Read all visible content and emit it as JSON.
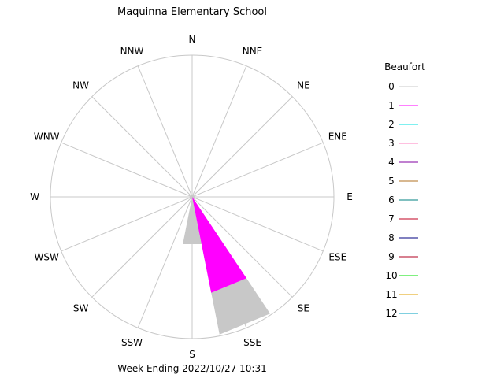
{
  "chart_data": {
    "type": "wind-rose",
    "title": "Maquinna Elementary School",
    "footer": "Week Ending 2022/10/27 10:31",
    "directions": [
      "N",
      "NNE",
      "NE",
      "ENE",
      "E",
      "ESE",
      "SE",
      "SSE",
      "S",
      "SSW",
      "SW",
      "WSW",
      "W",
      "WNW",
      "NW",
      "NNW"
    ],
    "max_radius_units": 100,
    "legend": {
      "title": "Beaufort",
      "entries": [
        {
          "label": "0",
          "color": "#c8c8c8"
        },
        {
          "label": "1",
          "color": "#ff00ff"
        },
        {
          "label": "2",
          "color": "#00e0e0"
        },
        {
          "label": "3",
          "color": "#ff80c0"
        },
        {
          "label": "4",
          "color": "#8000a0"
        },
        {
          "label": "5",
          "color": "#b07020"
        },
        {
          "label": "6",
          "color": "#008080"
        },
        {
          "label": "7",
          "color": "#c00020"
        },
        {
          "label": "8",
          "color": "#000080"
        },
        {
          "label": "9",
          "color": "#b00020"
        },
        {
          "label": "10",
          "color": "#00e000"
        },
        {
          "label": "11",
          "color": "#e0a000"
        },
        {
          "label": "12",
          "color": "#00a0c0"
        }
      ]
    },
    "series": [
      {
        "name": "0",
        "color": "#c8c8c8",
        "values": {
          "SSE": 99,
          "S": 34
        }
      },
      {
        "name": "1",
        "color": "#ff00ff",
        "values": {
          "SSE": 69
        }
      }
    ]
  }
}
